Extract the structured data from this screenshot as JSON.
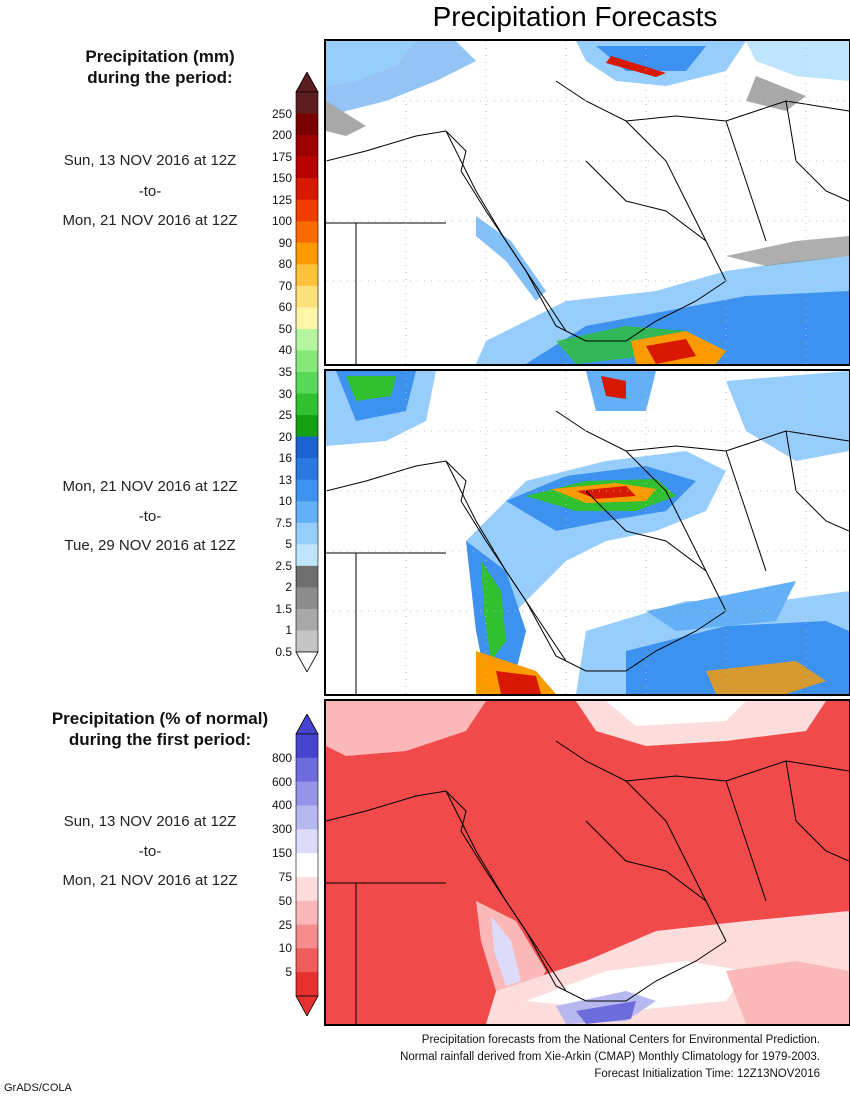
{
  "title": "Precipitation Forecasts",
  "panel1": {
    "heading": [
      "Precipitation (mm)",
      "during the period:"
    ],
    "start": "Sun, 13 NOV 2016 at 12Z",
    "sep": "-to-",
    "end": "Mon, 21 NOV 2016 at 12Z"
  },
  "panel2": {
    "start": "Mon, 21 NOV 2016 at 12Z",
    "sep": "-to-",
    "end": "Tue, 29 NOV 2016 at 12Z"
  },
  "panel3": {
    "heading": [
      "Precipitation (% of normal)",
      "during the first period:"
    ],
    "start": "Sun, 13 NOV 2016 at 12Z",
    "sep": "-to-",
    "end": "Mon, 21 NOV 2016 at 12Z"
  },
  "colorbar_mm": {
    "labels": [
      "250",
      "200",
      "175",
      "150",
      "125",
      "100",
      "90",
      "80",
      "70",
      "60",
      "50",
      "40",
      "35",
      "30",
      "25",
      "20",
      "16",
      "13",
      "10",
      "7.5",
      "5",
      "2.5",
      "2",
      "1.5",
      "1",
      "0.5"
    ],
    "colors": [
      "#5c1e1e",
      "#7a0000",
      "#9c0000",
      "#b80000",
      "#d81800",
      "#f03c00",
      "#fb6a00",
      "#fb9b00",
      "#fdc23a",
      "#fde07a",
      "#fff5a8",
      "#b6f5a0",
      "#86e878",
      "#58d858",
      "#30c030",
      "#14a014",
      "#1c62d0",
      "#2a78e0",
      "#3c92ee",
      "#64b0f6",
      "#96cdfa",
      "#bfe4fd",
      "#6e6e6e",
      "#8c8c8c",
      "#a8a8a8",
      "#c4c4c4"
    ]
  },
  "colorbar_pct": {
    "labels": [
      "800",
      "600",
      "400",
      "300",
      "150",
      "75",
      "50",
      "25",
      "10",
      "5"
    ],
    "colors": [
      "#4444cc",
      "#6c6cdc",
      "#9494e8",
      "#b8b8f0",
      "#dcdcfa",
      "#ffffff",
      "#fddcdc",
      "#fbb8b8",
      "#f78c8c",
      "#f05c5c",
      "#e83030"
    ]
  },
  "footer": [
    "Precipitation forecasts from the National Centers for Environmental Prediction.",
    "Normal rainfall derived from Xie-Arkin (CMAP) Monthly Climatology for 1979-2003.",
    "Forecast Initialization Time: 12Z13NOV2016"
  ],
  "credit": "GrADS/COLA"
}
